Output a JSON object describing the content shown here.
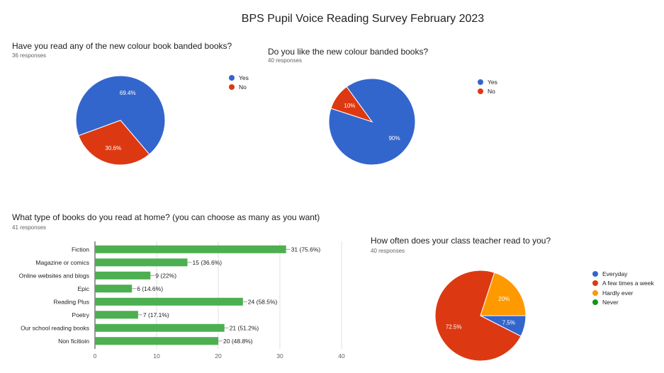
{
  "title": "BPS Pupil Voice Reading Survey February 2023",
  "chart_data": [
    {
      "type": "pie",
      "title": "Have you read any of the new colour book banded books?",
      "subtitle": "36 responses",
      "labels": [
        "Yes",
        "No"
      ],
      "values": [
        69.4,
        30.6
      ],
      "value_labels": [
        "69.4%",
        "30.6%"
      ],
      "colors": [
        "#3366cc",
        "#dc3912"
      ],
      "legend_position": "right"
    },
    {
      "type": "pie",
      "title": "Do you like the new colour banded books?",
      "subtitle": "40 responses",
      "labels": [
        "Yes",
        "No"
      ],
      "values": [
        90,
        10
      ],
      "value_labels": [
        "90%",
        "10%"
      ],
      "colors": [
        "#3366cc",
        "#dc3912"
      ],
      "legend_position": "right"
    },
    {
      "type": "bar",
      "orientation": "horizontal",
      "title": "What type of books do you read at home? (you can choose as many as you want)",
      "subtitle": "41 responses",
      "categories": [
        "Fiction",
        "Magazine or comics",
        "Online websites and blogs",
        "Epic",
        "Reading Plus",
        "Poetry",
        "Our school reading books",
        "Non ficitioin"
      ],
      "values": [
        31,
        15,
        9,
        6,
        24,
        7,
        21,
        20
      ],
      "value_labels": [
        "31 (75.6%)",
        "15 (36.6%)",
        "9 (22%)",
        "6 (14.6%)",
        "24 (58.5%)",
        "7 (17.1%)",
        "21 (51.2%)",
        "20 (48.8%)"
      ],
      "xlim": [
        0,
        40
      ],
      "xticks": [
        "0",
        "10",
        "20",
        "30",
        "40"
      ],
      "color": "#4caf50",
      "grid": true
    },
    {
      "type": "pie",
      "title": "How often does your class teacher read to you?",
      "subtitle": "40 responses",
      "labels": [
        "Everyday",
        "A few times a week",
        "Hardly ever",
        "Never"
      ],
      "values": [
        7.5,
        72.5,
        20,
        0
      ],
      "value_labels": [
        "7.5%",
        "72.5%",
        "20%",
        ""
      ],
      "colors": [
        "#3366cc",
        "#dc3912",
        "#ff9900",
        "#109618"
      ],
      "legend_position": "right"
    }
  ]
}
